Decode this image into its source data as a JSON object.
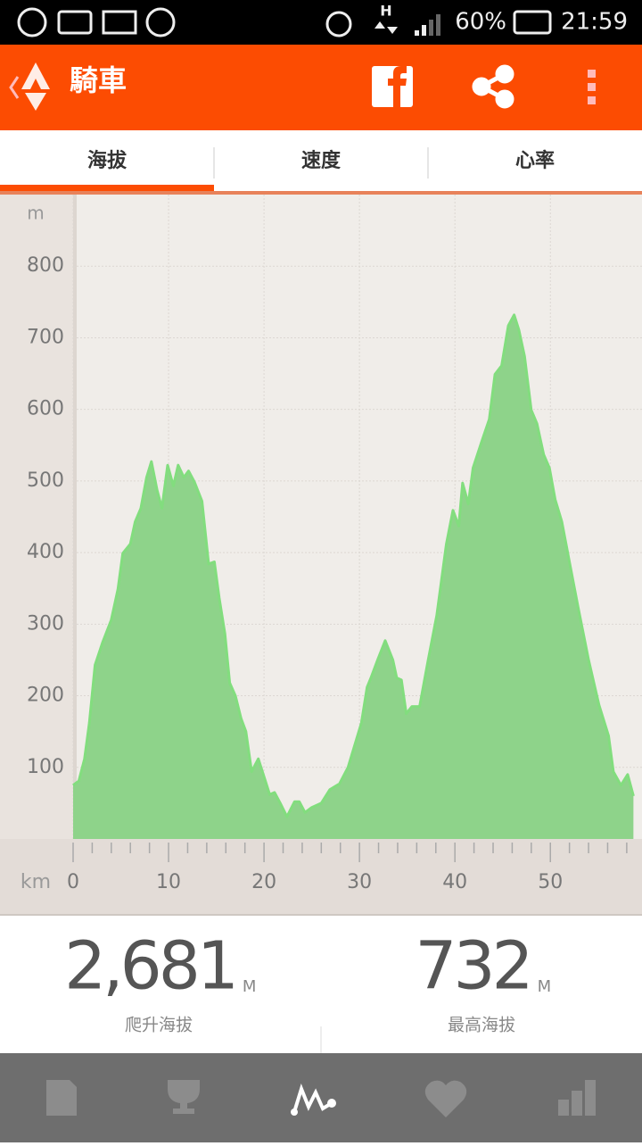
{
  "status_bar": {
    "network": "H",
    "battery": "60%",
    "time": "21:59"
  },
  "header": {
    "title": "騎車"
  },
  "tabs": [
    "海拔",
    "速度",
    "心率"
  ],
  "chart_data": {
    "type": "area",
    "y_unit": "m",
    "x_unit": "km",
    "color": "#8ed38a",
    "line_color": "#82dd7e",
    "grid": true,
    "xlim": [
      0,
      59.6
    ],
    "xticks": [
      0,
      10,
      20,
      30,
      40,
      50
    ],
    "ylim": [
      0,
      900
    ],
    "yticks": [
      100,
      200,
      300,
      400,
      500,
      600,
      700,
      800
    ],
    "x": [
      0,
      0.6,
      1.2,
      1.7,
      2.3,
      3.1,
      4.0,
      4.7,
      5.2,
      6.0,
      6.5,
      7.1,
      7.7,
      8.2,
      8.8,
      9.3,
      9.9,
      10.5,
      11.0,
      11.6,
      12.1,
      12.7,
      13.5,
      14.2,
      14.8,
      15.3,
      15.9,
      16.4,
      17.0,
      17.6,
      18.1,
      18.7,
      19.4,
      20.0,
      20.6,
      21.1,
      21.7,
      22.4,
      23.2,
      23.7,
      24.3,
      25.0,
      26.0,
      26.9,
      27.9,
      28.8,
      29.5,
      30.2,
      30.8,
      31.2,
      31.9,
      32.7,
      33.5,
      33.9,
      34.4,
      34.9,
      35.5,
      36.3,
      37.2,
      38.1,
      39.1,
      39.8,
      40.4,
      40.8,
      41.4,
      41.9,
      42.8,
      43.6,
      44.2,
      44.9,
      45.6,
      46.2,
      46.7,
      47.3,
      48.0,
      48.6,
      49.3,
      49.9,
      50.5,
      51.2,
      52.0,
      52.9,
      54.0,
      55.1,
      56.1,
      56.6,
      57.4,
      58.1,
      58.7
    ],
    "values": [
      75,
      81,
      112,
      162,
      243,
      275,
      306,
      349,
      399,
      412,
      443,
      462,
      505,
      527,
      487,
      462,
      522,
      493,
      522,
      505,
      514,
      499,
      472,
      384,
      387,
      337,
      287,
      218,
      200,
      168,
      150,
      94,
      112,
      87,
      62,
      65,
      50,
      31,
      52,
      52,
      37,
      44,
      50,
      69,
      77,
      100,
      131,
      162,
      212,
      225,
      250,
      277,
      250,
      225,
      222,
      175,
      185,
      185,
      250,
      312,
      412,
      459,
      437,
      497,
      468,
      518,
      555,
      586,
      649,
      661,
      717,
      732,
      711,
      674,
      599,
      580,
      537,
      518,
      474,
      443,
      387,
      324,
      250,
      187,
      144,
      94,
      75,
      90,
      60
    ]
  },
  "stats": [
    {
      "value": "2,681",
      "unit": "M",
      "label": "爬升海拔"
    },
    {
      "value": "732",
      "unit": "M",
      "label": "最高海拔"
    }
  ]
}
